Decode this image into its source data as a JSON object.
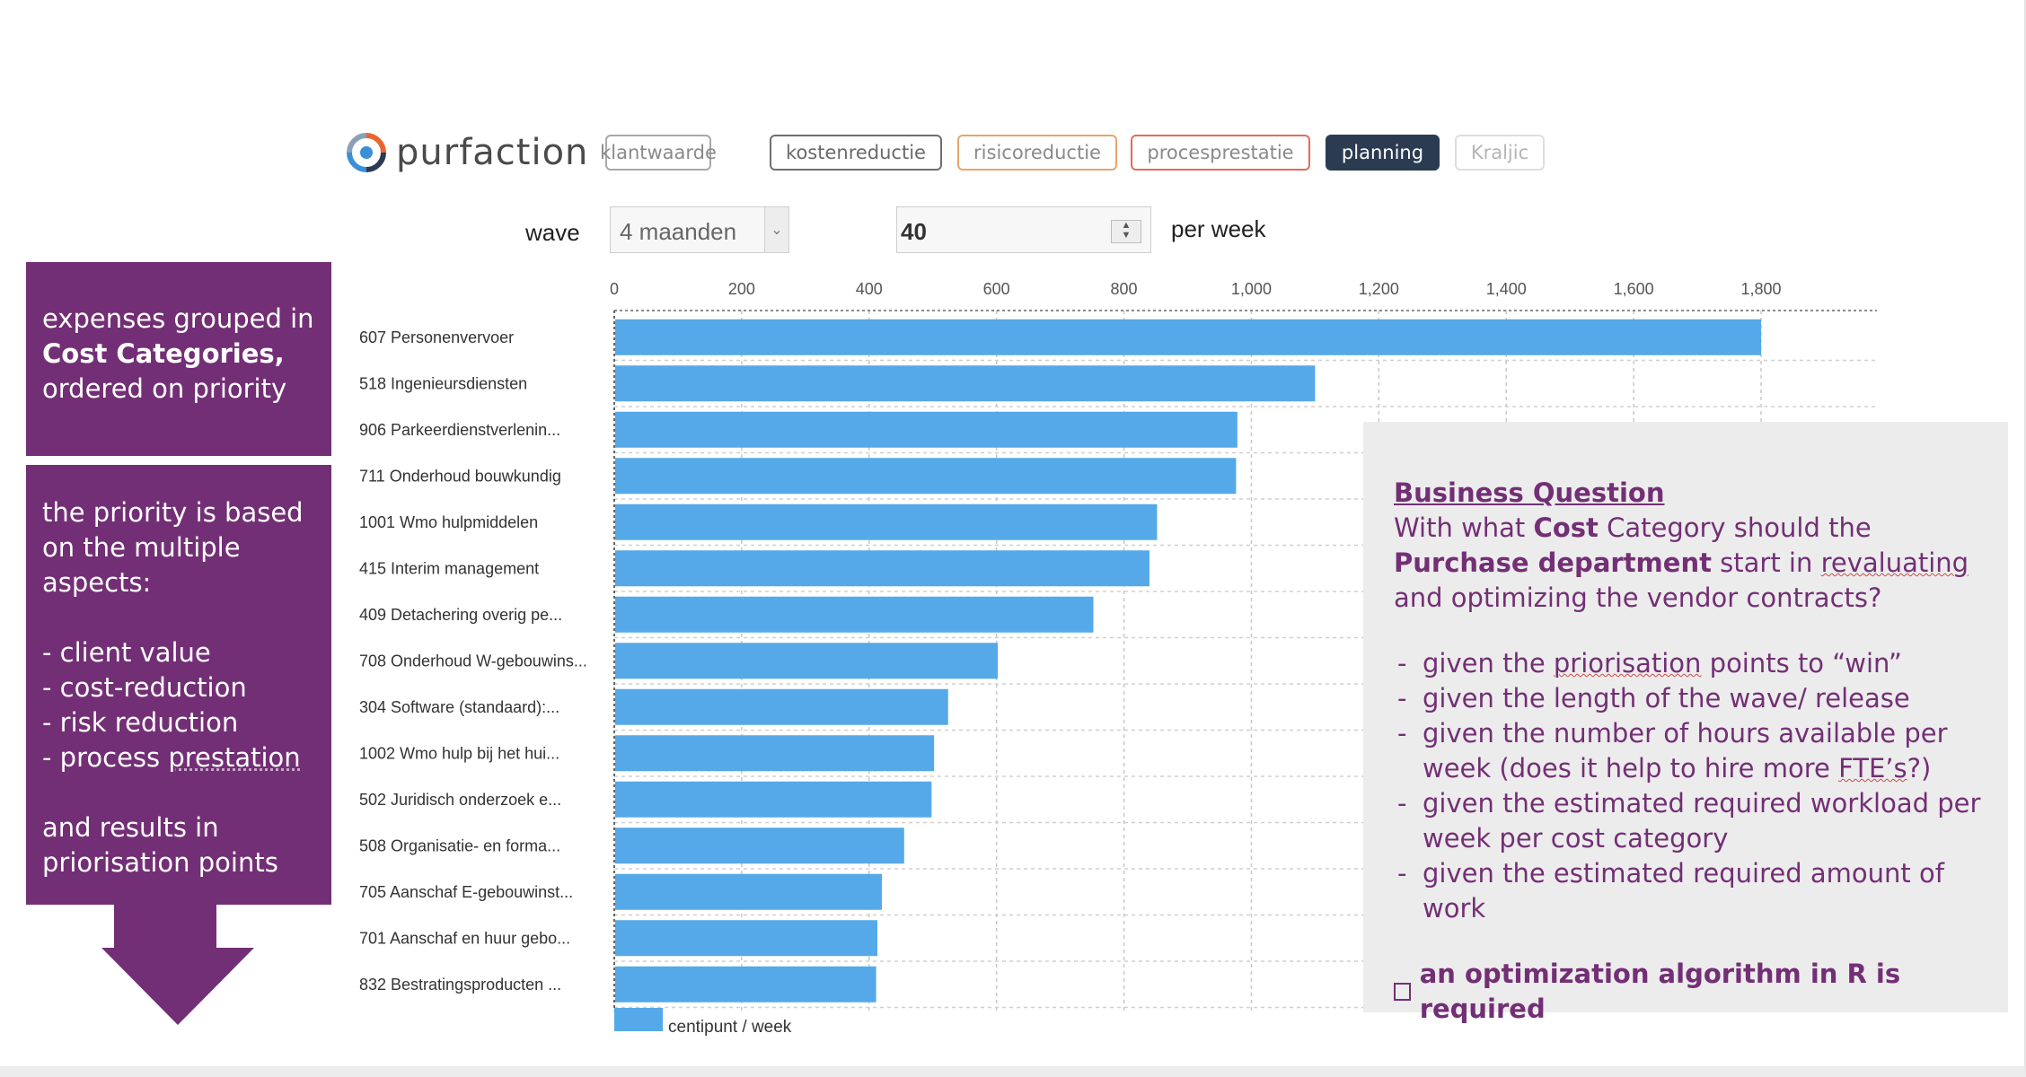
{
  "logo": {
    "text": "purfaction",
    "icon": "purfaction-logo-icon"
  },
  "tabs": [
    {
      "label": "klantwaarde",
      "active": false
    },
    {
      "label": "kostenreductie",
      "active": false
    },
    {
      "label": "risicoreductie",
      "active": false
    },
    {
      "label": "procesprestatie",
      "active": false
    },
    {
      "label": "planning",
      "active": true
    },
    {
      "label": "Kraljic",
      "active": false
    }
  ],
  "controls": {
    "wave_label": "wave",
    "wave_value": "4 maanden",
    "hours_value": "40",
    "per_week_label": "per week"
  },
  "left_panel": {
    "box1": {
      "line1": "expenses grouped in",
      "line2": "Cost Categories,",
      "line3": "ordered on priority"
    },
    "box2": {
      "intro1": "the priority is based",
      "intro2": "on the multiple",
      "intro3": "aspects:",
      "item1": "- client value",
      "item2": "- cost-reduction",
      "item3": "- risk reduction",
      "item4_pre": "- process ",
      "item4_word": "prestation",
      "outro1": "and results in",
      "outro2": "priorisation points"
    }
  },
  "chart_data": {
    "type": "bar",
    "orientation": "horizontal",
    "categories": [
      "607 Personenvervoer",
      "518 Ingenieursdiensten",
      "906 Parkeerdienstverlenin...",
      "711 Onderhoud bouwkundig",
      "1001 Wmo hulpmiddelen",
      "415 Interim management",
      "409 Detachering overig pe...",
      "708 Onderhoud W-gebouwins...",
      "304 Software (standaard):...",
      "1002 Wmo hulp bij het hui...",
      "502 Juridisch onderzoek e...",
      "508 Organisatie- en forma...",
      "705 Aanschaf E-gebouwinst...",
      "701 Aanschaf en huur gebo...",
      "832 Bestratingsproducten ..."
    ],
    "series": [
      {
        "name": "centipunt / week",
        "values": [
          1800,
          1100,
          978,
          976,
          852,
          840,
          752,
          602,
          524,
          502,
          498,
          455,
          420,
          413,
          411
        ]
      }
    ],
    "xlim": [
      0,
      1900
    ],
    "xticks": [
      "0",
      "200",
      "400",
      "600",
      "800",
      "1,000",
      "1,200",
      "1,400",
      "1,600",
      "1,800"
    ],
    "xtick_values": [
      0,
      200,
      400,
      600,
      800,
      1000,
      1200,
      1400,
      1600,
      1800
    ],
    "grid": true,
    "legend": "bottom-left",
    "color": "#55a9e8"
  },
  "business_question": {
    "title": "Business Question",
    "p_pre": "With what ",
    "p_b1": "Cost",
    "p_mid": " Category should the ",
    "p_b2": "Purchase department",
    "p_mid2": " start in ",
    "p_wavy": "revaluating",
    "p_end": " and optimizing the vendor contracts?",
    "b1_pre": "given the ",
    "b1_wavy": "priorisation",
    "b1_end": " points to “win”",
    "b2": "given the length of the wave/ release",
    "b3_a": "given the number of hours available per week (does it help to hire more ",
    "b3_wavy": "FTE’s",
    "b3_end": "?)",
    "b4": "given the estimated required workload per week per cost category",
    "b5": "given the estimated required amount of work",
    "final": "an optimization algorithm in R is required"
  }
}
